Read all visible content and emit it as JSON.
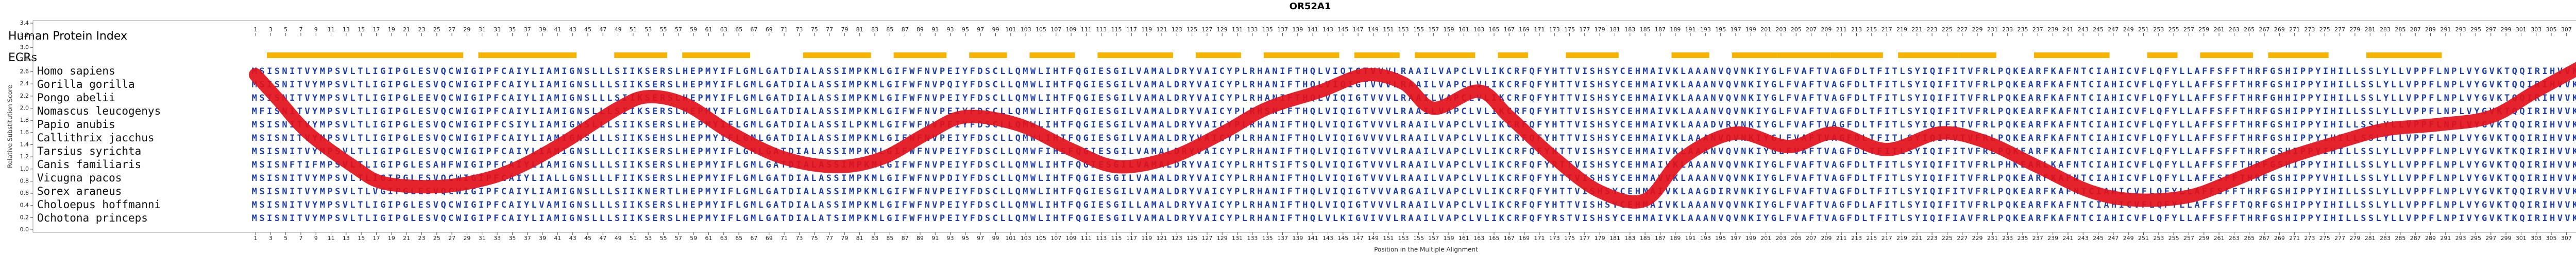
{
  "chart_data": {
    "type": "line",
    "title": "OR52A1",
    "ylabel": "Relative Substitution Score",
    "xlabel": "Position in the Multiple Alignment",
    "top_axis_label": "Human Protein Index",
    "ecr_label": "ECRs",
    "species": [
      "Homo sapiens",
      "Gorilla gorilla",
      "Pongo abelii",
      "Nomascus leucogenys",
      "Papio anubis",
      "Callithrix jacchus",
      "Tarsius syrichta",
      "Canis familiaris",
      "Vicugna pacos",
      "Sorex araneus",
      "Choloepus hoffmanni",
      "Ochotona princeps"
    ],
    "sequences": [
      "MSISNITVYMPSVLTLIGIPGLESVQCWIGIPFCAIYLIAMIGNSLLLSIIKSERSLHEPMYIFLGMLGATDIALASSIMPKMLGIFWFNVPEIYFDSCLLQMWLIHTFQGIESGILVAMALDRYVAICYPLRHANIFTHQLVIQIGTVVVLRAAILVAPCLVLIKCRFQFYHTTVISHSYCEHMAIVKLAAANVQVNKIYGLFVAFTVAGFDLTFITLSYIQIFITVFRLPQKEARFKAFNTCIAHICVFLQFYLLAFFSFFTHRFGSHIPPYIHILLSSLYLLVPPFLNPLVYGVKTQQIRIHVVKMFC",
      "MSISNITVYMPSVLTLIGIPGLESVQCWIGIPFCAIYLIAMIGNSLLLSIIKSERSLHEPMYIFLGMLGATDIALASSIMPKMLGIFWFNVPQIYFDSCLLQMWLIHTFQGIESGILVAMALDRYVAICYPLRHANIFTHQLVIQIGTVVVLRAAILVAPCLVLIKCRFQFYHTTVISHSYCEHMAIVKLAAANVQVNKIYGLFVAFTVAGFDLTFITLSYIQIFITVFRLPQKEARFKAFNTCIAHICVFLQFYLLAFFSFFTHRFGSHIPPYIHILLSSLYLLVPPFLNPLVYGVKTQQIRIHVVKMFC",
      "MSISNITVYMPSVLTLIGIPGLEEVQCWIGIPFCAIYLIAMIGNSLLLSIIKSERSLHEPMYIFLGMLGATDIALASSIMPKMLGIFWFNVPEIYFDSCLLQMWLIHTFQGIESGILVAMALDRYVAICYPLRHANIFTHQLVIQIGTVVVLRAAILVAPCLVLIKCRFQFYHTTVISHSYCEHMAIVKLAAANVQVNKIYGLFVAFTVAGFDLTFITLSYIQIFITVFRLPQKEARFKAFNTCIAHICVFLQFYLLAFFSFFTHRFGHHIPPYIHILLSSLYLLVPPFLNPLVYGVKTQQIRIHVVKMFC",
      "MFISNITVYMPSVLTLIGIPGLESVQCWIGIPFCAIYLIAMIGNSLLLSIIKSERSLHEPMYIFLGMLGATDIALASSIMPKMLGIFWFNVPEIYFDSCLLQMWLIHTFQGIESGILVAMALDRYVAICYPLRHSNIFTHQLVIQIGTVVVLRAAILVAPCLVLIKCRFQFYHTTVISHSYCEHMAIVKLAAANVQVNKIYGLFVAFTVAGFDLTFITLSYIQIFITVFRLPQKEARFKAFNTCIAHICVFLQFYLLAFFSFFTHRFGSHIPPYIHILLSSLYLLVPPFLNPLVYGVKTQQIRIHVVKMFC",
      "MSISNITVYMPSVLTLIGIPGLESVQCWIGIPFCSIYLIAMIGNSLLLSIIKSERSLHEPMYIFLGMLGATDIALASSILPKMLGIFWFNVPEIYFDSCLLQMWLIHTFQGIESGILVAMALDRYVAICYPLRHANIFTHQLVIQIGTVVVLRAAILVAPCLVLIKCRFQFYHTTVISHSYCEHMAIVKLAAADVRVNKIYGLFVAFTVAGFDLTFITLSYIQIFITVFRLPQKEARFKAFNTCIAHICVFLQFYLLAFFSFFTHRFGSHIPPYIHILLSSLYLLVPPFLNPLVYGVKTQQIRIHVVKMFC",
      "MSISNITVYMPSVLTLIGIPGLESVQCWIGIPFCAIYLIAMIGNSLLLSIIKSEHSLHEPMYIFLGMLGATDIALASSIMPKMLGIFWFNVPEIYFDSCLLQMWLIHTFQGIESGILVAMALDRYVAICYPLRHANIFTHQLVIQIGVVVVLRAAILVAPCLVLIKCRFQFYHTTVISHSYCEHMAIVKLAAANVQVNKIYGLFVAFTVAGFDLTFITLSYIQIFVTVFRLPQKEARFKAFNTCIAHICVFLQFYLLAFFSFFTHRFGSHIPPYIHILLSSLYLLVPPFLNPLVYGVKTQQIRIHVVKMFC",
      "MSISNITVYMPSVLTLIGIPGLESVQCWIGIPFCAIYLIAMIGNSLLLCIIKSERSLHEPMYIFLGMLGATDIALASSIMPKMLGIFWFNVPEIYFDSCLLQMWFIHSFQGIESGILVAMALDRYVAICYPLRHANIFTHQLVIQIGTVVVLRAAILVAPCLVLIKCRFQFYHTTVISHSYCEHMAIVKLAAANVQVNKIYGLFVAFTVAGFDLTFITLSYIQIFITVFRLPQKEARFKAFNTCIAHICVFLQFYLLAFFSFFTHRFGSHIPPYIHILLSSLYLLVPPFLNPLVYGVKTKQIRIHVVKMFC",
      "MSISNFTIFMPSVLTLIGIPGLESAHFWIGIPFCAIYLIAMIGNSLLLSIIKSERSLHEPMYIFLGMLGATDIALASSIMPKMLGIFWFNVPEIYFDSCLLQMWLIHTFQGIESGILVAMALDRYVAICYPLRHTSIFTSQLVIQIGTVVVLRAAILVAPCLVLIKCRFQFYRTTVISHSYCEHMAIVKLAAANVQVNKIYGLFVAFTVAGFDLTFITLSYIQIFITVFRLPHKEARLKAFNTCIAHICVFLQFYLLAFFSFFTHRFGSHIPPYIHILLSSLYLLVPPFLNPLVYGVKTQQIRIHVVKMFC",
      "MSISNITVYMPSVLTLIGIPGLESVQCWIGIPFCAIYLIALLGNSLLLFIIKSERSLHEPMYIFLGMLGATDIALASSIMPKMLGIFWFNVPDIYFDSCLLQMWLIHTFQGIESGILVAMALDRYVAICYPLRHANIFTHQLVIQIGTVVVLRAAILVAPCLVLIKCRFQFYHTTVISHSYCEHMAVVKLAAANVQVNKIYGLFVAFTVAGFDLTFITLSYIQIFITVFRLPQKEARFKAFNTCIAHICVFLQFYLLAFFSFFTHRFGSHIPPYVHILLSSLYLLVPPFLNPLVYGVKTQQIRIHVVKMFC",
      "MSISNITVYMPSVLTLVGIPGLESVQCWIGIPFCAIYLIAMIGNSLLLSIIKNERTLHEPMYIFLGMLGATDIALASSIMPKMLGIFWFNVPEIYFDSCLLQMWLIHTFQGIESGILVAMALDRYVAICYPLRHANIFTHQLVIQIGTVVVARGAILVAPCLVLIKCRFQFYHTTVISHSYCEHMAIVKLAAGDIRVNKIYGLFVAFTVAGFDLTFITLSYIQIFITVFRLPQKEARFKAFNTCIAHICVFLQFYLLAFFSFFTHRFGSHIPPYIHILLSSLYLLVPPFLNPLVYGVKTQQIRVHVVKMFC",
      "MSISNITVYMPSVLTLIGIPGLESVQCWIGIPFCAIYLVAMIGNSLLLSIIKSERSLHEPMYIFLGMLGATDIALASSIMPKMLGIFWFNVPEIYFDSCLLQMWLIHTFQGIESGILLAMALDRYVAICYPLRHANIFTHQLVIQIGTVVVLRAAILVAPCLVLIKCRFQFYHTTVISHSYCEHMAIVKLAAANVQVNKIYGLFVAFTVAGFDLAFITLSYIQIFITVFRLPQKEARFKAFNTCIAHICVFLQFYLLAFFSFFTQRFGSHIPPYIHILLSSLYLLVPPFLNPLVYGVKTQQIRIHVVKMFC",
      "MSISNITVYMPSVLTLIGIPGLESVQCWIGIPFCAIYLIAMIGNSLLLSIIKSERSLHEPMYIFLGMLGATDIALATSIMPKMLGIFWFHVPEIYFDSCLLQMWLIHTFQGIESGILVAMALDRYVAICYPLRHANIFTHQLVLKIGVIVVLRAAILVAPCLVLIKCRFQFYRSTVISHSYCEHMAIVKLAAANVQVNKIYGLFVAFTVAGFDLTFITLSYIQIFIAVFRLPQKEARFKAFNTCIAHICVFLQFYLLAFFSFFTHRFGSHIPPYIHILLSSLYLLVPPFLNPIVYGVKTKQIRIHVVKMFC"
    ],
    "ecrs": [
      [
        3,
        28
      ],
      [
        31,
        43
      ],
      [
        49,
        55
      ],
      [
        58,
        66
      ],
      [
        74,
        82
      ],
      [
        86,
        92
      ],
      [
        96,
        100
      ],
      [
        104,
        109
      ],
      [
        113,
        122
      ],
      [
        126,
        131
      ],
      [
        135,
        144
      ],
      [
        147,
        152
      ],
      [
        155,
        162
      ],
      [
        166,
        169
      ],
      [
        175,
        181
      ],
      [
        189,
        193
      ],
      [
        197,
        202
      ],
      [
        203,
        209
      ],
      [
        210,
        216
      ],
      [
        219,
        226
      ],
      [
        227,
        231
      ],
      [
        237,
        246
      ],
      [
        252,
        255
      ],
      [
        259,
        265
      ],
      [
        268,
        275
      ],
      [
        281,
        290
      ]
    ],
    "color": "#e3101a",
    "ecr_color": "#f6b400",
    "x": [
      1,
      4,
      8,
      14,
      18,
      25,
      31,
      36,
      42,
      49,
      53,
      58,
      64,
      71,
      78,
      84,
      90,
      95,
      102,
      109,
      115,
      122,
      129,
      135,
      142,
      148,
      153,
      157,
      163,
      167,
      173,
      179,
      185,
      190,
      197,
      204,
      210,
      217,
      224,
      230,
      237,
      244,
      250,
      257,
      263,
      270,
      277,
      283,
      290,
      297,
      303,
      311
    ],
    "values": [
      2.55,
      2.14,
      1.59,
      1.04,
      0.77,
      0.71,
      0.82,
      1.04,
      1.45,
      2.0,
      2.19,
      2.06,
      1.59,
      1.18,
      1.04,
      1.18,
      1.59,
      1.86,
      1.73,
      1.32,
      1.04,
      1.18,
      1.59,
      2.0,
      2.28,
      2.55,
      2.41,
      2.0,
      2.28,
      1.86,
      1.18,
      0.63,
      0.49,
      1.18,
      1.59,
      1.37,
      1.59,
      1.32,
      1.59,
      1.45,
      1.04,
      0.63,
      0.49,
      0.55,
      0.82,
      1.18,
      1.45,
      1.65,
      1.73,
      1.86,
      2.28,
      2.82
    ],
    "xlim": [
      1,
      311
    ],
    "ylim": [
      0,
      3.4
    ],
    "xticks": [
      1,
      3,
      5,
      7,
      9,
      11,
      13,
      15,
      17,
      19,
      21,
      23,
      25,
      27,
      29,
      31,
      33,
      35,
      37,
      39,
      41,
      43,
      45,
      47,
      49,
      51,
      53,
      55,
      57,
      59,
      61,
      63,
      65,
      67,
      69,
      71,
      73,
      75,
      77,
      79,
      81,
      83,
      85,
      87,
      89,
      91,
      93,
      95,
      97,
      99,
      101,
      103,
      105,
      107,
      109,
      111,
      113,
      115,
      117,
      119,
      121,
      123,
      125,
      127,
      129,
      131,
      133,
      135,
      137,
      139,
      141,
      143,
      145,
      147,
      149,
      151,
      153,
      155,
      157,
      159,
      161,
      163,
      165,
      167,
      169,
      171,
      173,
      175,
      177,
      179,
      181,
      183,
      185,
      187,
      189,
      191,
      193,
      195,
      197,
      199,
      201,
      203,
      205,
      207,
      209,
      211,
      213,
      215,
      217,
      219,
      221,
      223,
      225,
      227,
      229,
      231,
      233,
      235,
      237,
      239,
      241,
      243,
      245,
      247,
      249,
      251,
      253,
      255,
      257,
      259,
      261,
      263,
      265,
      267,
      269,
      271,
      273,
      275,
      277,
      279,
      281,
      283,
      285,
      287,
      289,
      291,
      293,
      295,
      297,
      299,
      301,
      303,
      305,
      307,
      309,
      311
    ],
    "yticks": [
      {
        "value": 0,
        "label": "0.0"
      },
      0.2,
      0.4,
      0.6,
      0.8,
      {
        "value": 1,
        "label": "1.0"
      },
      1.2,
      1.4,
      1.6,
      1.8,
      {
        "value": 2,
        "label": "2.0"
      },
      2.2,
      2.4,
      2.6,
      2.8,
      {
        "value": 3,
        "label": "3.0"
      },
      3.2,
      3.4
    ]
  }
}
